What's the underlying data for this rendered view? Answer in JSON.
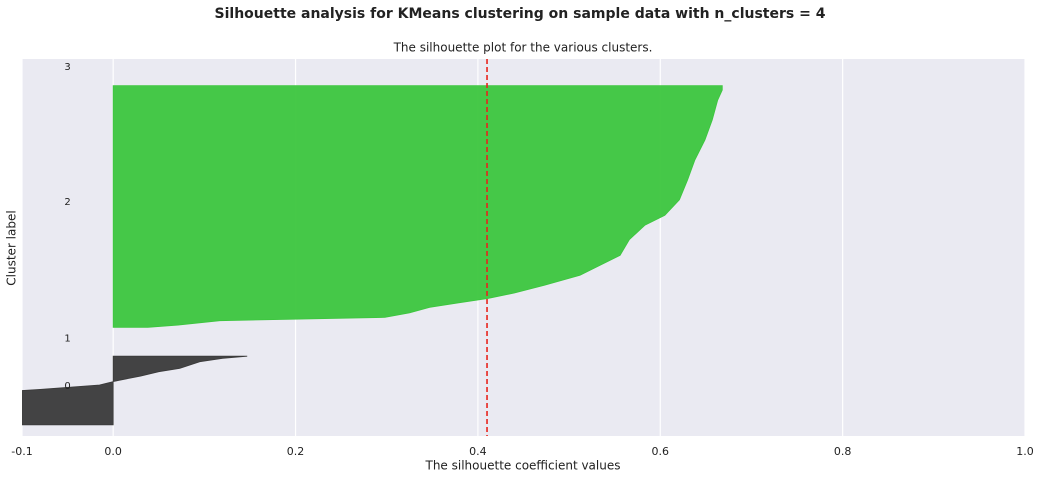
{
  "chart_data": {
    "type": "silhouette",
    "suptitle": "Silhouette analysis for KMeans clustering on sample data with n_clusters = 4",
    "title": "The silhouette plot for the various clusters.",
    "xlabel": "The silhouette coefficient values",
    "ylabel": "Cluster label",
    "xlim": [
      -0.1,
      1.0
    ],
    "xticks": [
      -0.1,
      {
        "value": 0,
        "label": "0.0"
      },
      0.2,
      0.4,
      0.6,
      0.8,
      {
        "value": 1,
        "label": "1.0"
      }
    ],
    "ylim": [
      0,
      340
    ],
    "grid": true,
    "avg_line": {
      "value": 0.41,
      "color": "#e8231c"
    },
    "series": [
      {
        "name": "0",
        "color": "#3a3a3a",
        "y": [
          10,
          41,
          42,
          46,
          49,
          50,
          54,
          58,
          61,
          67,
          70,
          72
        ],
        "values": [
          -0.1,
          -0.1,
          -0.08,
          -0.015,
          0,
          0.005,
          0.03,
          0.05,
          0.073,
          0.095,
          0.12,
          0.147
        ]
      },
      {
        "name": "2",
        "color": "#3cc63e",
        "y": [
          98,
          100,
          104,
          107,
          111,
          116,
          120,
          124,
          129,
          136,
          145,
          154,
          163,
          177,
          190,
          199,
          213,
          231,
          249,
          267,
          285,
          303,
          312,
          316
        ],
        "values": [
          0.038,
          0.071,
          0.117,
          0.298,
          0.325,
          0.347,
          0.378,
          0.411,
          0.44,
          0.473,
          0.512,
          0.534,
          0.556,
          0.566,
          0.583,
          0.605,
          0.621,
          0.63,
          0.638,
          0.649,
          0.657,
          0.663,
          0.668,
          0.668
        ]
      }
    ],
    "annotations": [
      {
        "text": "0",
        "x": -0.05,
        "y": 45
      },
      {
        "text": "1",
        "x": -0.05,
        "y": 88
      },
      {
        "text": "2",
        "x": -0.05,
        "y": 211
      },
      {
        "text": "3",
        "x": -0.05,
        "y": 333
      }
    ]
  }
}
